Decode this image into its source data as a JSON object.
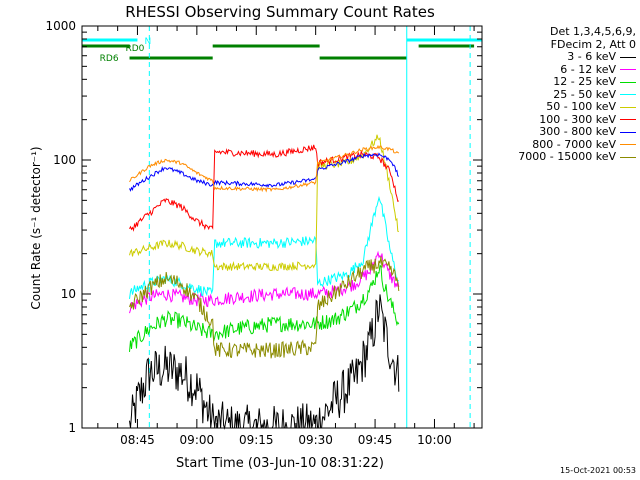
{
  "chart_data": {
    "type": "line",
    "title": "RHESSI Observing Summary Count Rates",
    "xlabel": "Start Time (03-Jun-10 08:31:22)",
    "ylabel": "Count Rate (s⁻¹ detector⁻¹)",
    "yscale": "log",
    "ylim": [
      1,
      1000
    ],
    "xlim": [
      "08:31:22",
      "10:12"
    ],
    "x_ticks": [
      "08:45",
      "09:00",
      "09:15",
      "09:30",
      "09:45",
      "10:00"
    ],
    "y_ticks": [
      "1",
      "10",
      "100",
      "1000"
    ],
    "legend_position": "right",
    "legend_header": [
      "Det 1,3,4,5,6,9,",
      "FDecim 2, Att 0"
    ],
    "series": [
      {
        "name": "3 - 6 keV",
        "color": "#000000",
        "x": [
          "08:43",
          "08:45",
          "08:48",
          "08:52",
          "08:56",
          "09:00",
          "09:04",
          "09:10",
          "09:20",
          "09:30",
          "09:35",
          "09:40",
          "09:44",
          "09:46",
          "09:48",
          "09:51"
        ],
        "y": [
          1,
          1.6,
          2.6,
          2.8,
          2.6,
          2,
          1.1,
          1,
          1,
          1.05,
          1.6,
          2.3,
          4.5,
          8,
          4.5,
          2.4
        ]
      },
      {
        "name": "6 - 12 keV",
        "color": "#ff00ff",
        "x": [
          "08:43",
          "08:48",
          "08:52",
          "08:56",
          "09:00",
          "09:04",
          "09:10",
          "09:20",
          "09:30",
          "09:35",
          "09:40",
          "09:44",
          "09:46",
          "09:48",
          "09:51"
        ],
        "y": [
          8,
          9.5,
          10,
          9.5,
          9,
          9,
          9.5,
          10,
          10,
          10.5,
          12,
          15,
          21,
          15,
          11
        ]
      },
      {
        "name": "12 - 25 keV",
        "color": "#00dd00",
        "x": [
          "08:43",
          "08:48",
          "08:52",
          "08:56",
          "09:00",
          "09:04",
          "09:10",
          "09:20",
          "09:30",
          "09:35",
          "09:40",
          "09:44",
          "09:46",
          "09:48",
          "09:51"
        ],
        "y": [
          4,
          5.5,
          6.5,
          6.3,
          5.5,
          5,
          5.5,
          6,
          6,
          6.5,
          8,
          11,
          16,
          10,
          6
        ]
      },
      {
        "name": "25 - 50 keV",
        "color": "#00ffff",
        "x": [
          "08:43",
          "08:45",
          "08:48",
          "08:52",
          "08:56",
          "09:00",
          "09:04",
          "09:04.5",
          "09:20",
          "09:30",
          "09:30.5",
          "09:38",
          "09:42",
          "09:46",
          "09:49",
          "09:51"
        ],
        "y": [
          10,
          11,
          12,
          13,
          12,
          11,
          10,
          24,
          24,
          25,
          12,
          14,
          18,
          55,
          20,
          12
        ]
      },
      {
        "name": "50 - 100 keV",
        "color": "#cccc00",
        "x": [
          "08:43",
          "08:48",
          "08:52",
          "08:56",
          "09:00",
          "09:04",
          "09:04.5",
          "09:20",
          "09:30",
          "09:30.5",
          "09:38",
          "09:42",
          "09:46",
          "09:49",
          "09:51"
        ],
        "y": [
          20,
          22,
          24,
          23,
          21,
          20,
          16,
          16,
          16.5,
          90,
          95,
          110,
          150,
          60,
          28
        ]
      },
      {
        "name": "100 - 300 keV",
        "color": "#ff0000",
        "x": [
          "08:43",
          "08:48",
          "08:52",
          "08:56",
          "09:00",
          "09:04",
          "09:04.5",
          "09:20",
          "09:30",
          "09:30.5",
          "09:38",
          "09:42",
          "09:46",
          "09:49",
          "09:51"
        ],
        "y": [
          30,
          40,
          50,
          45,
          35,
          30,
          115,
          110,
          125,
          95,
          105,
          110,
          105,
          80,
          48
        ]
      },
      {
        "name": "300 - 800 keV",
        "color": "#0000ff",
        "x": [
          "08:43",
          "08:48",
          "08:52",
          "08:56",
          "09:00",
          "09:04",
          "09:04.5",
          "09:20",
          "09:30",
          "09:30.5",
          "09:38",
          "09:42",
          "09:46",
          "09:49",
          "09:51"
        ],
        "y": [
          60,
          75,
          88,
          80,
          70,
          65,
          68,
          65,
          72,
          85,
          98,
          108,
          110,
          100,
          75
        ]
      },
      {
        "name": "800 - 7000 keV",
        "color": "#ff8c00",
        "x": [
          "08:43",
          "08:48",
          "08:52",
          "08:56",
          "09:00",
          "09:04",
          "09:04.5",
          "09:20",
          "09:30",
          "09:30.5",
          "09:38",
          "09:42",
          "09:46",
          "09:49",
          "09:51"
        ],
        "y": [
          70,
          90,
          100,
          95,
          80,
          70,
          62,
          60,
          68,
          95,
          110,
          120,
          125,
          120,
          110
        ]
      },
      {
        "name": "7000 - 15000 keV",
        "color": "#8b8b00",
        "x": [
          "08:43",
          "08:48",
          "08:52",
          "08:56",
          "09:00",
          "09:04",
          "09:04.5",
          "09:20",
          "09:30",
          "09:30.5",
          "09:38",
          "09:42",
          "09:46",
          "09:49",
          "09:51"
        ],
        "y": [
          8,
          11,
          13,
          12,
          9,
          6,
          3.8,
          3.8,
          4,
          8,
          12,
          15,
          17,
          15,
          12
        ]
      }
    ],
    "annotations": [
      {
        "label": "N",
        "color": "#00ffff"
      },
      {
        "label": "RD0",
        "color": "#008000"
      },
      {
        "label": "RD6",
        "color": "#008000"
      }
    ]
  },
  "footer": {
    "date_stamp": "15-Oct-2021 00:53"
  }
}
